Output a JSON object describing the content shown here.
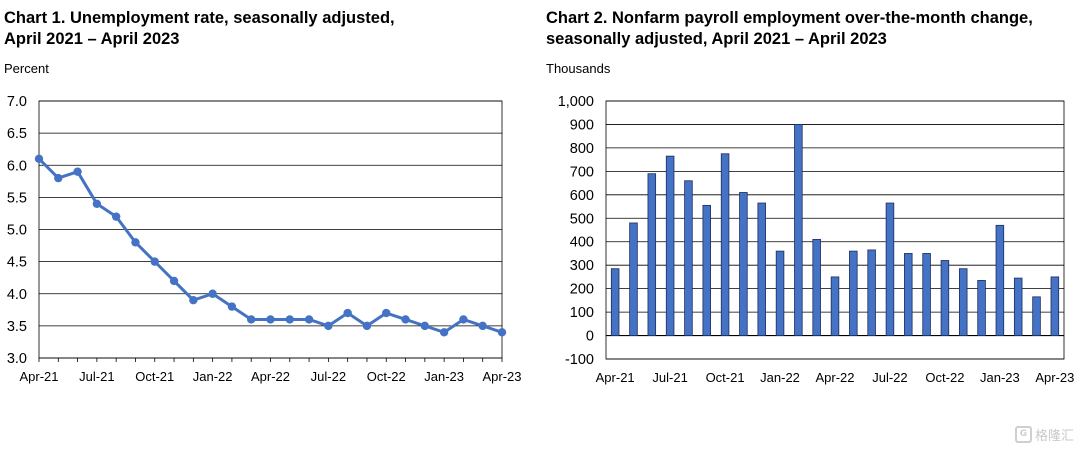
{
  "chart1": {
    "title_line1": "Chart 1. Unemployment rate, seasonally adjusted,",
    "title_line2": "April 2021 – April 2023",
    "unit": "Percent"
  },
  "chart2": {
    "title_line1": "Chart 2. Nonfarm payroll employment over-the-month change,",
    "title_line2": "seasonally adjusted, April 2021 – April 2023",
    "unit": "Thousands"
  },
  "watermark": {
    "text": "格隆汇",
    "icon": "logo-icon"
  },
  "chart_data": [
    {
      "type": "line",
      "title": "Chart 1. Unemployment rate, seasonally adjusted, April 2021 – April 2023",
      "ylabel": "Percent",
      "ylim": [
        3.0,
        7.0
      ],
      "yticks": [
        "3.0",
        "3.5",
        "4.0",
        "4.5",
        "5.0",
        "5.5",
        "6.0",
        "6.5",
        "7.0"
      ],
      "xtick_labels": [
        "Apr-21",
        "Jul-21",
        "Oct-21",
        "Jan-22",
        "Apr-22",
        "Jul-22",
        "Oct-22",
        "Jan-23",
        "Apr-23"
      ],
      "x": [
        "Apr-21",
        "May-21",
        "Jun-21",
        "Jul-21",
        "Aug-21",
        "Sep-21",
        "Oct-21",
        "Nov-21",
        "Dec-21",
        "Jan-22",
        "Feb-22",
        "Mar-22",
        "Apr-22",
        "May-22",
        "Jun-22",
        "Jul-22",
        "Aug-22",
        "Sep-22",
        "Oct-22",
        "Nov-22",
        "Dec-22",
        "Jan-23",
        "Feb-23",
        "Mar-23",
        "Apr-23"
      ],
      "series": [
        {
          "values": [
            6.1,
            5.8,
            5.9,
            5.4,
            5.2,
            4.8,
            4.5,
            4.2,
            3.9,
            4.0,
            3.8,
            3.6,
            3.6,
            3.6,
            3.6,
            3.5,
            3.7,
            3.5,
            3.7,
            3.6,
            3.5,
            3.4,
            3.6,
            3.5,
            3.4
          ]
        }
      ],
      "color": "#4472c4",
      "grid": true
    },
    {
      "type": "bar",
      "title": "Chart 2. Nonfarm payroll employment over-the-month change, seasonally adjusted, April 2021 – April 2023",
      "ylabel": "Thousands",
      "ylim": [
        -100,
        1000
      ],
      "yticks": [
        "-100",
        "0",
        "100",
        "200",
        "300",
        "400",
        "500",
        "600",
        "700",
        "800",
        "900",
        "1,000"
      ],
      "xtick_labels": [
        "Apr-21",
        "Jul-21",
        "Oct-21",
        "Jan-22",
        "Apr-22",
        "Jul-22",
        "Oct-22",
        "Jan-23",
        "Apr-23"
      ],
      "categories": [
        "Apr-21",
        "May-21",
        "Jun-21",
        "Jul-21",
        "Aug-21",
        "Sep-21",
        "Oct-21",
        "Nov-21",
        "Dec-21",
        "Jan-22",
        "Feb-22",
        "Mar-22",
        "Apr-22",
        "May-22",
        "Jun-22",
        "Jul-22",
        "Aug-22",
        "Sep-22",
        "Oct-22",
        "Nov-22",
        "Dec-22",
        "Jan-23",
        "Feb-23",
        "Mar-23",
        "Apr-23"
      ],
      "values": [
        285,
        480,
        690,
        765,
        660,
        555,
        775,
        610,
        565,
        360,
        900,
        410,
        250,
        360,
        365,
        565,
        350,
        350,
        320,
        285,
        235,
        470,
        245,
        165,
        250
      ],
      "color": "#4472c4",
      "grid": true
    }
  ]
}
